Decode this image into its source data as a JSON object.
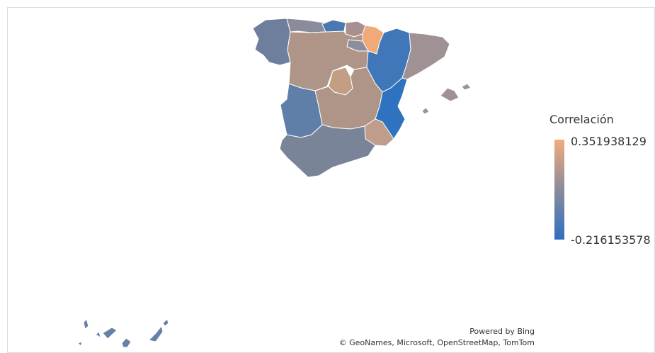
{
  "legend": {
    "title": "Correlación",
    "max_label": "0.351938129",
    "min_label": "-0.216153578"
  },
  "attribution": {
    "powered": "Powered by Bing",
    "credits": "© GeoNames, Microsoft, OpenStreetMap, TomTom"
  }
}
